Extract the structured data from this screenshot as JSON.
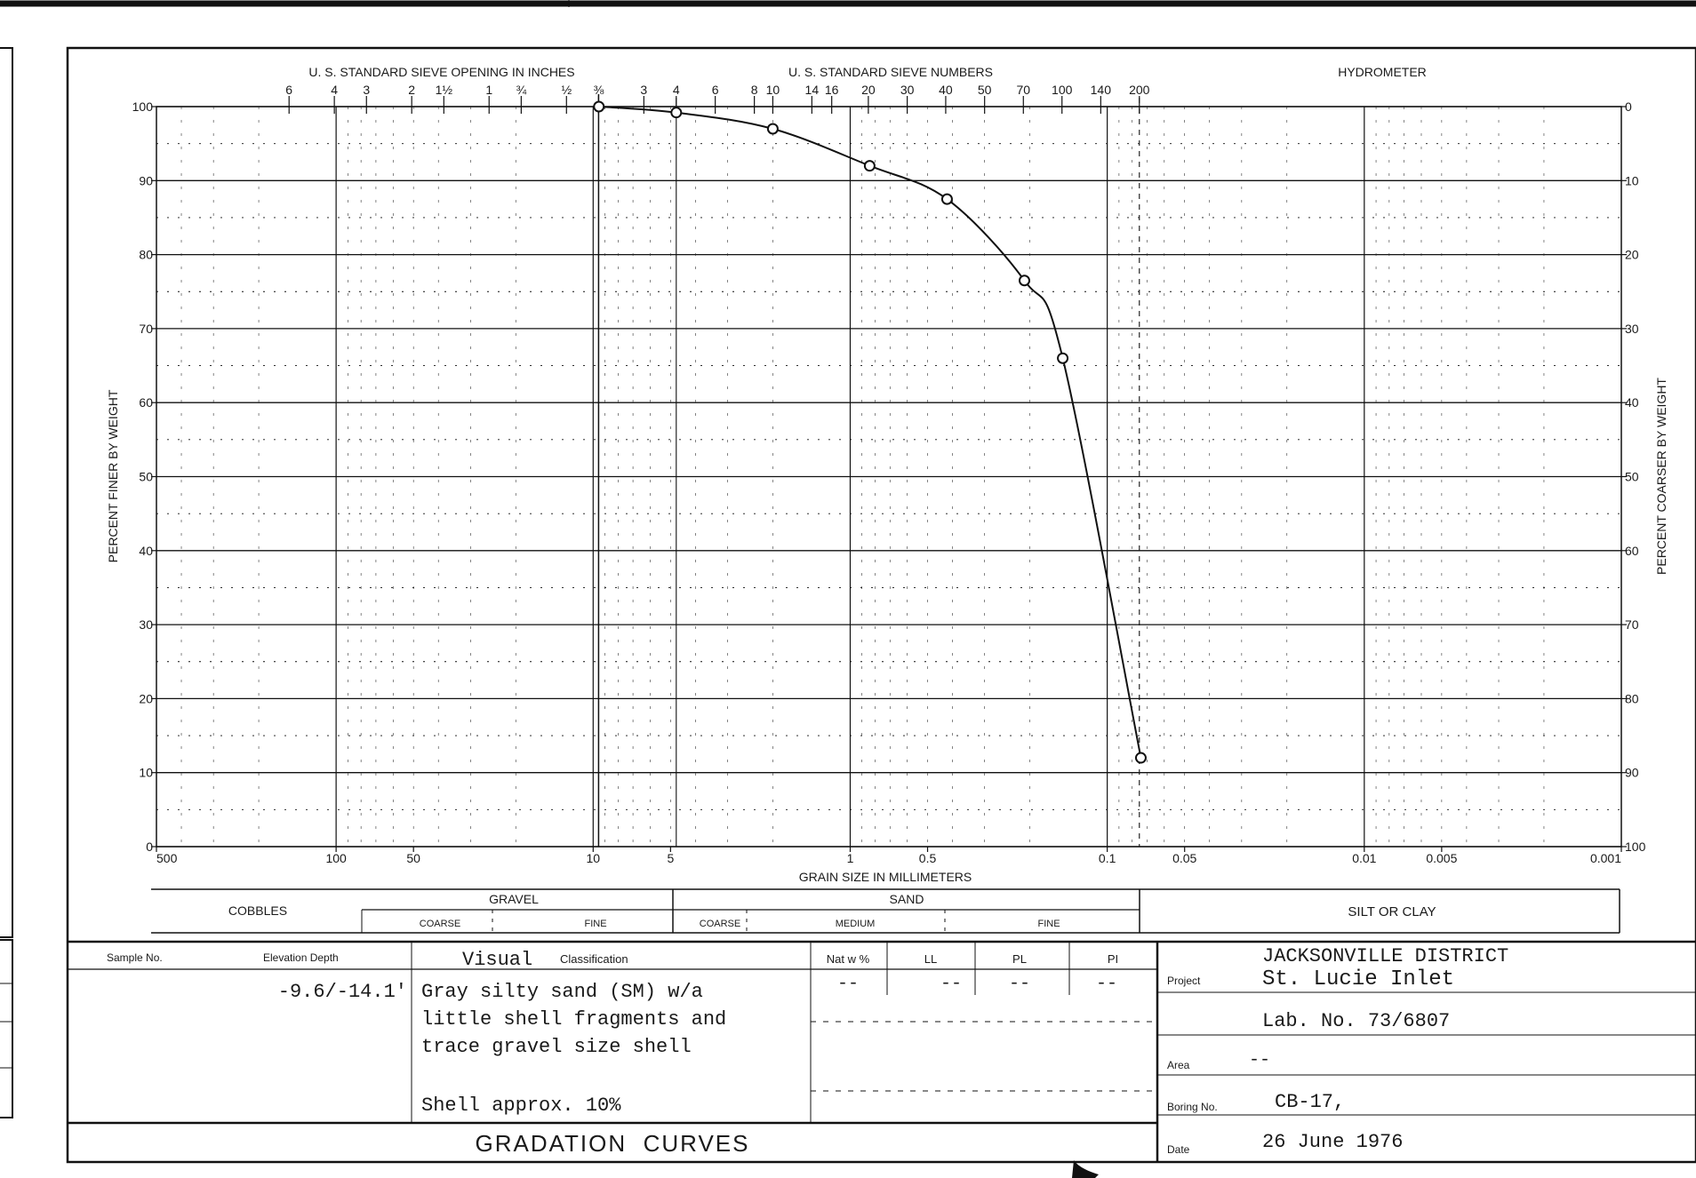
{
  "chart_data": {
    "type": "line",
    "xscale": "log",
    "x_reversed": true,
    "xlim": [
      500,
      0.001
    ],
    "ylim": [
      0,
      100
    ],
    "xlabel": "GRAIN SIZE IN MILLIMETERS",
    "ylabel_left": "PERCENT FINER BY WEIGHT",
    "ylabel_right": "PERCENT COARSER BY WEIGHT",
    "x_tick_labels": [
      {
        "x": 500,
        "label": "500"
      },
      {
        "x": 100,
        "label": "100"
      },
      {
        "x": 50,
        "label": "50"
      },
      {
        "x": 10,
        "label": "10"
      },
      {
        "x": 5,
        "label": "5"
      },
      {
        "x": 1,
        "label": "1"
      },
      {
        "x": 0.5,
        "label": "0.5"
      },
      {
        "x": 0.1,
        "label": "0.1"
      },
      {
        "x": 0.05,
        "label": "0.05"
      },
      {
        "x": 0.01,
        "label": "0.01"
      },
      {
        "x": 0.005,
        "label": "0.005"
      },
      {
        "x": 0.001,
        "label": "0.001"
      }
    ],
    "y_left_ticks": [
      0,
      10,
      20,
      30,
      40,
      50,
      60,
      70,
      80,
      90,
      100
    ],
    "y_right_ticks": [
      0,
      10,
      20,
      30,
      40,
      50,
      60,
      70,
      80,
      90,
      100
    ],
    "points": [
      {
        "x": 9.5,
        "y": 100
      },
      {
        "x": 4.75,
        "y": 99.2
      },
      {
        "x": 2.0,
        "y": 97
      },
      {
        "x": 0.84,
        "y": 92
      },
      {
        "x": 0.42,
        "y": 87.5
      },
      {
        "x": 0.21,
        "y": 76.5
      },
      {
        "x": 0.149,
        "y": 66
      },
      {
        "x": 0.074,
        "y": 12
      }
    ],
    "grid": true
  },
  "top_scales": {
    "sieve_inches_title": "U. S. STANDARD SIEVE OPENING IN INCHES",
    "sieve_numbers_title": "U. S. STANDARD SIEVE NUMBERS",
    "hydrometer_title": "HYDROMETER",
    "sieve_inches": [
      {
        "x": 152.4,
        "label": "6"
      },
      {
        "x": 101.6,
        "label": "4"
      },
      {
        "x": 76.2,
        "label": "3"
      },
      {
        "x": 50.8,
        "label": "2"
      },
      {
        "x": 38.1,
        "label": "1½"
      },
      {
        "x": 25.4,
        "label": "1"
      },
      {
        "x": 19.05,
        "label": "¾"
      },
      {
        "x": 12.7,
        "label": "½"
      },
      {
        "x": 9.525,
        "label": "⅜"
      }
    ],
    "sieve_numbers": [
      {
        "x": 6.35,
        "label": "3"
      },
      {
        "x": 4.75,
        "label": "4"
      },
      {
        "x": 3.35,
        "label": "6"
      },
      {
        "x": 2.36,
        "label": "8"
      },
      {
        "x": 2.0,
        "label": "10"
      },
      {
        "x": 1.41,
        "label": "14"
      },
      {
        "x": 1.18,
        "label": "16"
      },
      {
        "x": 0.85,
        "label": "20"
      },
      {
        "x": 0.6,
        "label": "30"
      },
      {
        "x": 0.425,
        "label": "40"
      },
      {
        "x": 0.3,
        "label": "50"
      },
      {
        "x": 0.212,
        "label": "70"
      },
      {
        "x": 0.15,
        "label": "100"
      },
      {
        "x": 0.106,
        "label": "140"
      },
      {
        "x": 0.075,
        "label": "200"
      }
    ]
  },
  "classification_band": {
    "cobbles": "COBBLES",
    "gravel": "GRAVEL",
    "gravel_coarse": "COARSE",
    "gravel_fine": "FINE",
    "sand": "SAND",
    "sand_coarse": "COARSE",
    "sand_medium": "MEDIUM",
    "sand_fine": "FINE",
    "silt_clay": "SILT OR CLAY"
  },
  "sample_table": {
    "headers": {
      "sample_no": "Sample No.",
      "elevation": "Elevation Depth",
      "visual": "Visual",
      "classification": "Classification",
      "nat_w": "Nat w %",
      "ll": "LL",
      "pl": "PL",
      "pi": "PI"
    },
    "row": {
      "elevation": "-9.6/-14.1'",
      "description": [
        "Gray silty sand (SM) w/a",
        "little shell fragments and",
        "trace gravel size shell"
      ],
      "note": "Shell approx. 10%",
      "nat_w": "--",
      "ll": "--",
      "pl": "--",
      "pi": "--"
    },
    "footer": "GRADATION  CURVES"
  },
  "project_block": {
    "district": "JACKSONVILLE DISTRICT",
    "project_label": "Project",
    "project": "St. Lucie Inlet",
    "lab_no": "Lab. No. 73/6807",
    "area_label": "Area",
    "area": "--",
    "boring_label": "Boring No.",
    "boring": "CB-17,",
    "date_label": "Date",
    "date": "26 June 1976"
  }
}
